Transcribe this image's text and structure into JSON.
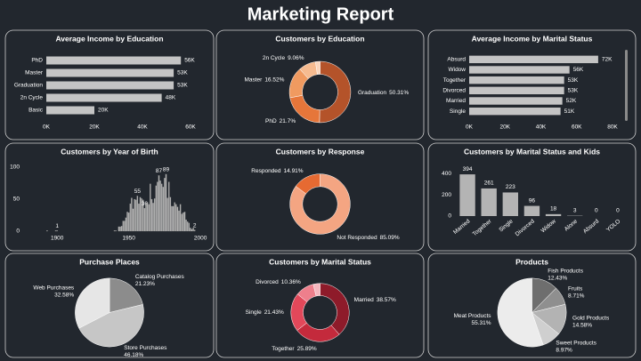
{
  "title": "Marketing Report",
  "chart_data": [
    {
      "type": "barh",
      "title": "Average Income by Education",
      "categories": [
        "PhD",
        "Master",
        "Graduation",
        "2n Cycle",
        "Basic"
      ],
      "values": [
        56000,
        53000,
        53000,
        48000,
        20000
      ],
      "value_labels": [
        "56K",
        "53K",
        "53K",
        "48K",
        "20K"
      ],
      "color": "#c4c4c4",
      "xlim": [
        0,
        60000
      ],
      "xticks": [
        {
          "value": 0,
          "label": "0K"
        },
        {
          "value": 20000,
          "label": "20K"
        },
        {
          "value": 40000,
          "label": "40K"
        },
        {
          "value": 60000,
          "label": "60K"
        }
      ]
    },
    {
      "type": "donut",
      "title": "Customers by Education",
      "categories": [
        "Graduation",
        "PhD",
        "Master",
        "2n Cycle",
        null
      ],
      "values": [
        50.31,
        21.7,
        16.52,
        9.06,
        2.41
      ],
      "value_labels": [
        "50.31%",
        "21.7%",
        "16.52%",
        "9.06%",
        null
      ],
      "colors": [
        "#b4532a",
        "#e6763a",
        "#f09a60",
        "#f6bb90",
        "#fad6bd"
      ]
    },
    {
      "type": "barh",
      "title": "Average Income by Marital Status",
      "categories": [
        "Absurd",
        "Widow",
        "Together",
        "Divorced",
        "Married",
        "Single"
      ],
      "values": [
        72000,
        56000,
        53000,
        53000,
        52000,
        51000
      ],
      "value_labels": [
        "72K",
        "56K",
        "53K",
        "53K",
        "52K",
        "51K"
      ],
      "color": "#c4c4c4",
      "xlim": [
        0,
        80000
      ],
      "xticks": [
        {
          "value": 0,
          "label": "0K"
        },
        {
          "value": 20000,
          "label": "20K"
        },
        {
          "value": 40000,
          "label": "40K"
        },
        {
          "value": 60000,
          "label": "60K"
        },
        {
          "value": 80000,
          "label": "80K"
        }
      ]
    },
    {
      "type": "bar",
      "title": "Customers by Year of Birth",
      "x": [
        1893,
        1899,
        1900,
        1940,
        1941,
        1943,
        1944,
        1945,
        1946,
        1947,
        1948,
        1949,
        1950,
        1951,
        1952,
        1953,
        1954,
        1955,
        1956,
        1957,
        1958,
        1959,
        1960,
        1961,
        1962,
        1963,
        1964,
        1965,
        1966,
        1967,
        1968,
        1969,
        1970,
        1971,
        1972,
        1973,
        1974,
        1975,
        1976,
        1977,
        1978,
        1979,
        1980,
        1981,
        1982,
        1983,
        1984,
        1985,
        1986,
        1987,
        1988,
        1989,
        1990,
        1991,
        1992,
        1993,
        1994,
        1995,
        1996
      ],
      "values": [
        1,
        1,
        1,
        1,
        1,
        7,
        7,
        8,
        16,
        16,
        21,
        30,
        29,
        43,
        52,
        35,
        50,
        49,
        55,
        43,
        53,
        51,
        49,
        36,
        44,
        45,
        42,
        74,
        50,
        44,
        51,
        71,
        77,
        87,
        79,
        74,
        69,
        83,
        89,
        52,
        77,
        53,
        39,
        39,
        45,
        42,
        38,
        32,
        42,
        27,
        29,
        30,
        18,
        15,
        13,
        5,
        3,
        5,
        2
      ],
      "value_labels": [
        null,
        null,
        "1",
        null,
        null,
        null,
        null,
        null,
        null,
        null,
        null,
        null,
        null,
        null,
        null,
        null,
        null,
        null,
        "55",
        null,
        null,
        null,
        null,
        "36",
        null,
        null,
        null,
        null,
        null,
        null,
        null,
        null,
        null,
        "87",
        null,
        null,
        null,
        null,
        "89",
        null,
        null,
        null,
        null,
        null,
        null,
        null,
        null,
        null,
        null,
        null,
        null,
        null,
        null,
        null,
        null,
        null,
        null,
        null,
        "2"
      ],
      "color": "#b4b4b4",
      "xlim": [
        1880,
        2003
      ],
      "ylim": [
        0,
        100
      ],
      "yticks": [
        0,
        50,
        100
      ],
      "xticks": [
        1900,
        1950,
        2000
      ]
    },
    {
      "type": "donut",
      "title": "Customers by Response",
      "categories": [
        "Not Responded",
        "Responded"
      ],
      "values": [
        85.09,
        14.91
      ],
      "value_labels": [
        "85.09%",
        "14.91%"
      ],
      "colors": [
        "#f4a582",
        "#e66a32"
      ]
    },
    {
      "type": "bar",
      "title": "Customers by Marital Status and Kids",
      "categories": [
        "Married",
        "Together",
        "Single",
        "Divorced",
        "Widow",
        "Alone",
        "Absurd",
        "YOLO"
      ],
      "values": [
        394,
        261,
        223,
        96,
        18,
        3,
        0,
        0
      ],
      "color": "#b4b4b4",
      "ylim": [
        0,
        420
      ],
      "yticks": [
        0,
        200,
        400
      ]
    },
    {
      "type": "pie",
      "title": "Purchase Places",
      "categories": [
        "Catalog Purchases",
        "Store Purchases",
        "Web Purchases"
      ],
      "values": [
        21.23,
        46.18,
        32.58
      ],
      "value_labels": [
        "21.23%",
        "46.18%",
        "32.58%"
      ],
      "colors": [
        "#8c8c8c",
        "#c6c6c6",
        "#e6e6e6"
      ]
    },
    {
      "type": "donut",
      "title": "Customers by Marital Status",
      "categories": [
        "Married",
        "Together",
        "Single",
        "Divorced",
        null
      ],
      "values": [
        38.57,
        25.89,
        21.43,
        10.36,
        3.75
      ],
      "value_labels": [
        "38.57%",
        "25.89%",
        "21.43%",
        "10.36%",
        null
      ],
      "colors": [
        "#8e1b2a",
        "#c42a3c",
        "#e2485a",
        "#ee7f8c",
        "#f6b7bf"
      ]
    },
    {
      "type": "pie",
      "title": "Products",
      "categories": [
        "Fish Products",
        "Fruits",
        "Gold Products",
        "Sweet Products",
        "Meat Products"
      ],
      "values": [
        12.43,
        8.71,
        14.58,
        8.97,
        55.31
      ],
      "value_labels": [
        "12.43%",
        "8.71%",
        "14.58%",
        "8.97%",
        "55.31%"
      ],
      "colors": [
        "#6e6e6e",
        "#8f8f8f",
        "#b3b3b3",
        "#cfcfcf",
        "#ececec"
      ]
    }
  ]
}
